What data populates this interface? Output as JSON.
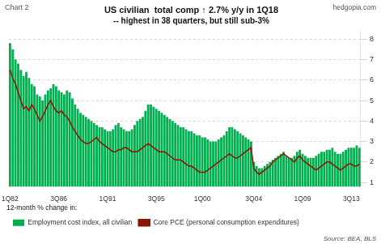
{
  "chart_data": {
    "type": "bar",
    "title": "US civilian  total comp ↑ 2.7% y/y in 1Q18",
    "subtitle": "-- highest in 38 quarters, but still sub-3%",
    "annotations": [
      "Chart 2",
      "hedgopia.com",
      "Source: BEA, BLS",
      "12-month % change in:"
    ],
    "categories": [
      "1Q82",
      null,
      null,
      null,
      null,
      null,
      null,
      null,
      null,
      null,
      null,
      null,
      null,
      null,
      null,
      null,
      null,
      null,
      "3Q86",
      null,
      null,
      null,
      null,
      null,
      null,
      null,
      null,
      null,
      null,
      null,
      null,
      null,
      null,
      null,
      null,
      null,
      "1Q91",
      null,
      null,
      null,
      null,
      null,
      null,
      null,
      null,
      null,
      null,
      null,
      null,
      null,
      null,
      null,
      null,
      null,
      "3Q95",
      null,
      null,
      null,
      null,
      null,
      null,
      null,
      null,
      null,
      null,
      null,
      null,
      null,
      null,
      null,
      null,
      "1Q00",
      null,
      null,
      null,
      null,
      null,
      null,
      null,
      null,
      null,
      null,
      null,
      null,
      null,
      null,
      null,
      null,
      null,
      null,
      "3Q04",
      null,
      null,
      null,
      null,
      null,
      null,
      null,
      null,
      null,
      null,
      null,
      null,
      null,
      null,
      null,
      null,
      null,
      "1Q09",
      null,
      null,
      null,
      null,
      null,
      null,
      null,
      null,
      null,
      null,
      null,
      null,
      null,
      null,
      null,
      null,
      null,
      "3Q13",
      null,
      null,
      null
    ],
    "series": [
      {
        "name": "Employment cost index, all civilian",
        "type": "bar",
        "color": "#00b050",
        "values": [
          7.8,
          7.5,
          7.0,
          6.8,
          6.5,
          6.2,
          6.4,
          6.1,
          5.8,
          5.7,
          5.3,
          5.2,
          5.0,
          5.3,
          5.5,
          5.6,
          5.8,
          5.7,
          5.5,
          5.4,
          5.3,
          5.5,
          5.4,
          5.1,
          4.8,
          4.6,
          4.4,
          4.3,
          4.2,
          4.1,
          4.0,
          3.9,
          3.8,
          3.7,
          3.7,
          3.6,
          3.5,
          3.5,
          3.6,
          3.8,
          3.9,
          3.7,
          3.6,
          3.5,
          3.5,
          3.6,
          3.8,
          4.0,
          4.1,
          4.2,
          4.5,
          4.8,
          4.8,
          4.7,
          4.6,
          4.5,
          4.4,
          4.3,
          4.2,
          4.1,
          4.0,
          3.9,
          3.8,
          3.7,
          3.7,
          3.6,
          3.5,
          3.5,
          3.4,
          3.3,
          3.3,
          3.2,
          3.2,
          3.1,
          3.0,
          3.0,
          3.0,
          3.1,
          3.2,
          3.3,
          3.5,
          3.7,
          3.7,
          3.6,
          3.5,
          3.4,
          3.3,
          3.2,
          3.1,
          3.0,
          2.0,
          1.8,
          1.7,
          1.7,
          1.8,
          1.9,
          2.0,
          2.1,
          2.2,
          2.3,
          2.4,
          2.5,
          2.3,
          2.2,
          2.2,
          2.3,
          2.5,
          2.6,
          2.4,
          2.3,
          2.2,
          2.2,
          2.2,
          2.3,
          2.4,
          2.5,
          2.5,
          2.6,
          2.6,
          2.7,
          2.5,
          2.4,
          2.4,
          2.5,
          2.6,
          2.7,
          2.7,
          2.7,
          2.8,
          2.7
        ]
      },
      {
        "name": "Core PCE (personal consumption expenditures)",
        "type": "line",
        "color": "#8B1500",
        "values": [
          6.5,
          6.1,
          5.8,
          5.4,
          5.0,
          4.6,
          4.7,
          4.5,
          4.8,
          4.6,
          4.3,
          4.0,
          4.2,
          4.5,
          4.8,
          5.0,
          4.7,
          4.5,
          4.4,
          4.5,
          4.3,
          4.2,
          4.0,
          3.7,
          3.5,
          3.3,
          3.1,
          3.0,
          2.9,
          2.9,
          3.0,
          3.1,
          3.2,
          3.0,
          2.9,
          2.8,
          2.7,
          2.6,
          2.5,
          2.5,
          2.6,
          2.6,
          2.7,
          2.7,
          2.6,
          2.5,
          2.5,
          2.5,
          2.6,
          2.7,
          2.8,
          2.9,
          2.8,
          2.7,
          2.6,
          2.5,
          2.5,
          2.5,
          2.4,
          2.3,
          2.2,
          2.1,
          2.1,
          2.1,
          2.0,
          1.9,
          1.8,
          1.8,
          1.7,
          1.6,
          1.5,
          1.5,
          1.5,
          1.6,
          1.7,
          1.8,
          1.9,
          2.0,
          2.1,
          2.2,
          2.3,
          2.4,
          2.3,
          2.2,
          2.2,
          2.3,
          2.4,
          2.5,
          2.6,
          2.7,
          1.7,
          1.5,
          1.4,
          1.5,
          1.6,
          1.7,
          1.8,
          2.0,
          2.1,
          2.2,
          2.3,
          2.4,
          2.3,
          2.2,
          2.1,
          2.0,
          2.2,
          2.3,
          2.1,
          2.0,
          1.9,
          1.8,
          1.7,
          1.6,
          1.7,
          1.8,
          1.9,
          2.0,
          2.0,
          1.9,
          1.8,
          1.7,
          1.6,
          1.7,
          1.8,
          1.9,
          1.9,
          1.8,
          1.8,
          1.9
        ]
      }
    ],
    "ylim": [
      0.8,
      8.4
    ],
    "yticks": [
      1,
      2,
      3,
      4,
      5,
      6,
      7,
      8
    ],
    "grid": true,
    "legend": "bottom"
  }
}
